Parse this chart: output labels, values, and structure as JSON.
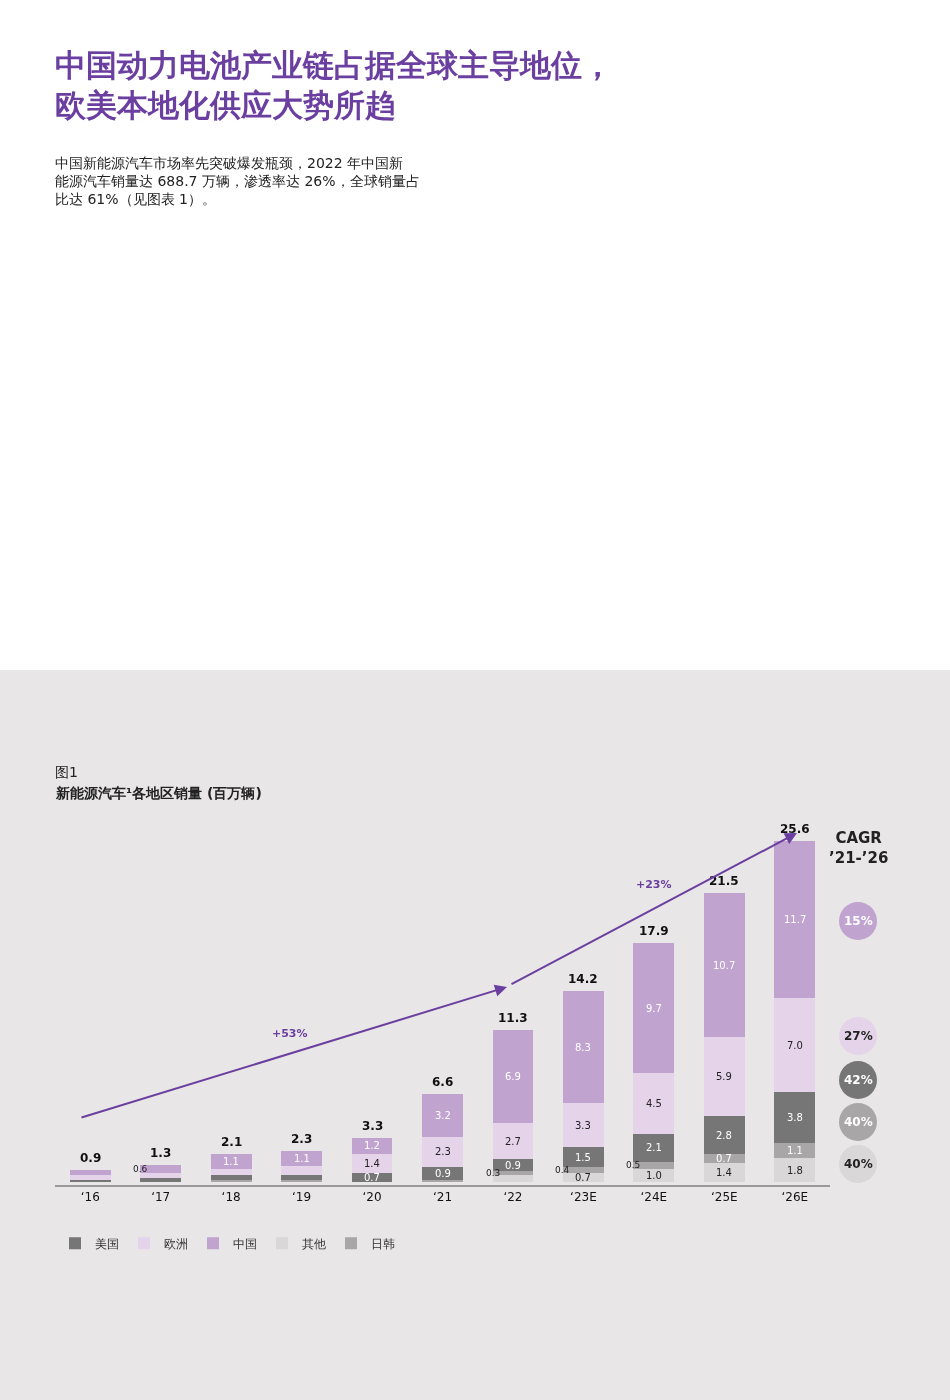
{
  "chart_data": {
    "type": "bar",
    "stacked": true,
    "title": "中国动力电池产业链占据全球主导地位，欧美本地化供应大势所趋",
    "subtitle": "中国新能源汽车市场率先突破爆发瓶颈，2022 年中国新能源汽车销量达 688.7 万辆，渗透率达 26%，全球销量占比达 61%（见图表 1）。",
    "categories": [
      "‘16",
      "‘17",
      "‘18",
      "‘19",
      "‘20",
      "‘21",
      "‘22",
      "‘23E",
      "‘24E",
      "‘25E",
      "‘26E"
    ],
    "series": [
      {
        "name": "其他",
        "color": "#d9d7d8",
        "values": [
          null,
          null,
          null,
          null,
          null,
          null,
          0.5,
          0.7,
          1.0,
          1.4,
          1.8
        ],
        "value_labels": [
          null,
          null,
          null,
          null,
          null,
          null,
          null,
          "0.7",
          "1.0",
          "1.4",
          "1.8"
        ]
      },
      {
        "name": "日韩",
        "color": "#a8a6a7",
        "values": [
          null,
          null,
          0.2,
          0.2,
          null,
          0.2,
          0.3,
          0.4,
          0.5,
          0.7,
          1.1
        ],
        "value_labels": [
          null,
          null,
          null,
          null,
          null,
          null,
          "0.3",
          "0.4",
          "0.5",
          "0.7",
          "1.1"
        ]
      },
      {
        "name": "美国",
        "color": "#777677",
        "values": [
          0.2,
          0.3,
          0.3,
          0.3,
          0.7,
          0.9,
          0.9,
          1.5,
          2.1,
          2.8,
          3.8
        ],
        "value_labels": [
          null,
          null,
          null,
          null,
          "0.7",
          "0.9",
          "0.9",
          "1.5",
          "2.1",
          "2.8",
          "3.8"
        ]
      },
      {
        "name": "欧洲",
        "color": "#e5d3ea",
        "values": [
          0.3,
          0.4,
          0.5,
          0.7,
          1.4,
          2.3,
          2.7,
          3.3,
          4.5,
          5.9,
          7.0
        ],
        "value_labels": [
          null,
          null,
          null,
          null,
          "1.4",
          "2.3",
          "2.7",
          "3.3",
          "4.5",
          "5.9",
          "7.0"
        ]
      },
      {
        "name": "中国",
        "color": "#c0a3cf",
        "values": [
          0.4,
          0.6,
          1.1,
          1.1,
          1.2,
          3.2,
          6.9,
          8.3,
          9.7,
          10.7,
          11.7
        ],
        "value_labels": [
          null,
          "0.6",
          "1.1",
          "1.1",
          "1.2",
          "3.2",
          "6.9",
          "8.3",
          "9.7",
          "10.7",
          "11.7"
        ]
      }
    ],
    "totals": [
      "0.9",
      "1.3",
      "2.1",
      "2.3",
      "3.3",
      "6.6",
      "11.3",
      "14.2",
      "17.9",
      "21.5",
      "25.6"
    ],
    "tick_labels": "x",
    "legend": "bottom",
    "grid": false,
    "annotations": [
      "图1",
      "新能源汽车¹各地区销量 (百万辆)",
      "+53%",
      "+23%",
      "CAGR\n’21-’26",
      "15%",
      "27%",
      "42%",
      "40%",
      "40%"
    ]
  }
}
